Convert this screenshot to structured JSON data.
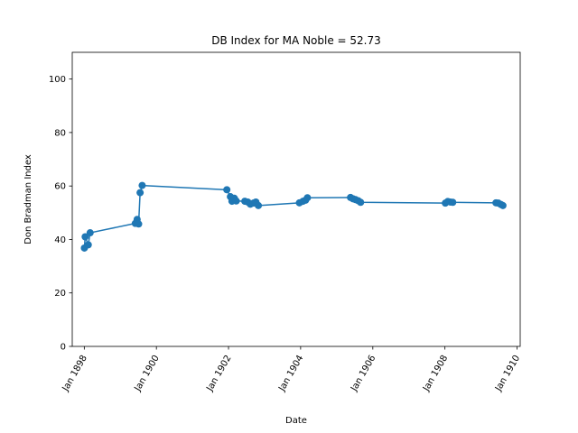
{
  "chart_data": {
    "type": "line",
    "title": "DB Index for MA Noble = 52.73",
    "xlabel": "Date",
    "ylabel": "Don Bradman Index",
    "xlim": [
      "1897-09-01",
      "1910-02-01"
    ],
    "ylim": [
      0,
      110
    ],
    "x_ticks": [
      {
        "date": "1898-01-01",
        "label": "Jan 1898"
      },
      {
        "date": "1900-01-01",
        "label": "Jan 1900"
      },
      {
        "date": "1902-01-01",
        "label": "Jan 1902"
      },
      {
        "date": "1904-01-01",
        "label": "Jan 1904"
      },
      {
        "date": "1906-01-01",
        "label": "Jan 1906"
      },
      {
        "date": "1908-01-01",
        "label": "Jan 1908"
      },
      {
        "date": "1910-01-01",
        "label": "Jan 1910"
      }
    ],
    "y_ticks": [
      0,
      20,
      40,
      60,
      80,
      100
    ],
    "grid": false,
    "legend": null,
    "markers": true,
    "series": [
      {
        "color": "#1f77b4",
        "points": [
          {
            "x": "1898-01-02",
            "y": 36.8
          },
          {
            "x": "1898-01-10",
            "y": 41.0
          },
          {
            "x": "1898-02-10",
            "y": 38.0
          },
          {
            "x": "1898-03-01",
            "y": 42.5
          },
          {
            "x": "1899-06-01",
            "y": 46.0
          },
          {
            "x": "1899-06-20",
            "y": 47.5
          },
          {
            "x": "1899-07-05",
            "y": 45.8
          },
          {
            "x": "1899-07-20",
            "y": 57.5
          },
          {
            "x": "1899-08-10",
            "y": 60.2
          },
          {
            "x": "1901-12-15",
            "y": 58.6
          },
          {
            "x": "1902-01-20",
            "y": 56.0
          },
          {
            "x": "1902-02-05",
            "y": 54.3
          },
          {
            "x": "1902-03-01",
            "y": 55.4
          },
          {
            "x": "1902-03-20",
            "y": 54.4
          },
          {
            "x": "1902-06-15",
            "y": 54.3
          },
          {
            "x": "1902-07-15",
            "y": 54.0
          },
          {
            "x": "1902-08-10",
            "y": 53.2
          },
          {
            "x": "1902-09-10",
            "y": 53.6
          },
          {
            "x": "1902-10-05",
            "y": 54.0
          },
          {
            "x": "1902-10-30",
            "y": 52.7
          },
          {
            "x": "1903-12-20",
            "y": 53.7
          },
          {
            "x": "1904-01-25",
            "y": 54.3
          },
          {
            "x": "1904-02-20",
            "y": 54.7
          },
          {
            "x": "1904-03-10",
            "y": 55.6
          },
          {
            "x": "1905-05-20",
            "y": 55.7
          },
          {
            "x": "1905-06-15",
            "y": 55.2
          },
          {
            "x": "1905-07-10",
            "y": 54.9
          },
          {
            "x": "1905-08-05",
            "y": 54.5
          },
          {
            "x": "1905-08-30",
            "y": 53.9
          },
          {
            "x": "1908-01-05",
            "y": 53.6
          },
          {
            "x": "1908-01-30",
            "y": 54.2
          },
          {
            "x": "1908-02-25",
            "y": 54.0
          },
          {
            "x": "1908-03-20",
            "y": 53.9
          },
          {
            "x": "1909-06-01",
            "y": 53.7
          },
          {
            "x": "1909-06-25",
            "y": 53.6
          },
          {
            "x": "1909-07-20",
            "y": 53.1
          },
          {
            "x": "1909-08-10",
            "y": 52.7
          }
        ]
      }
    ]
  }
}
